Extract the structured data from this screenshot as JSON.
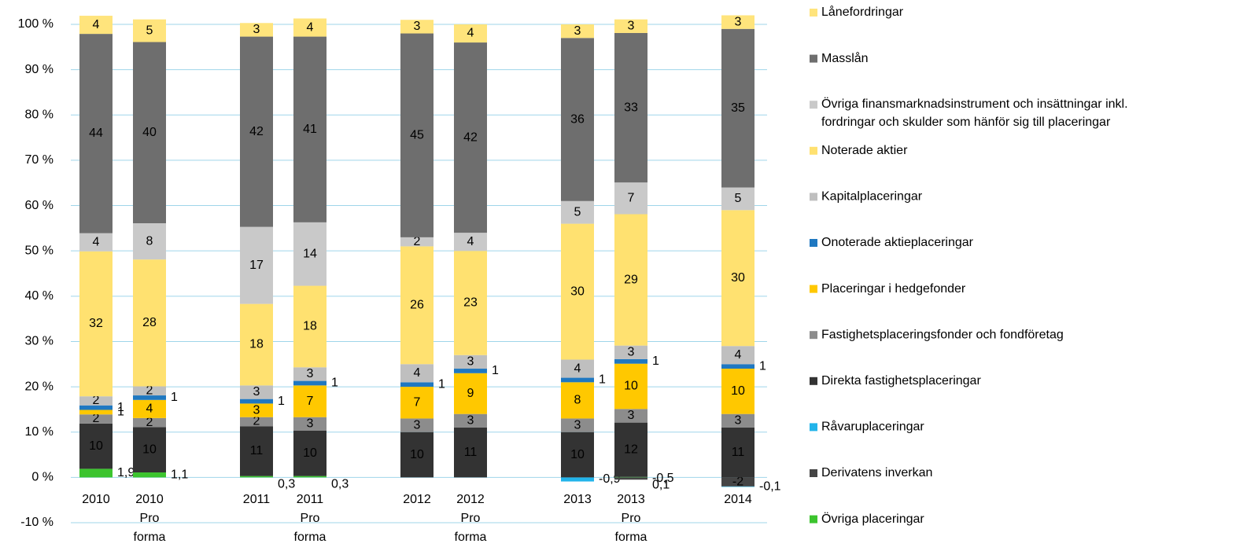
{
  "chart_data": {
    "type": "stacked_bar",
    "categories": [
      "2010",
      "2010\nPro\nforma",
      "2011",
      "2011\nPro\nforma",
      "2012",
      "2012\nPro\nforma",
      "2013",
      "2013\nPro\nforma",
      "2014"
    ],
    "ylim": [
      -10,
      100
    ],
    "yticks": [
      {
        "value": -10,
        "label": "-10 %"
      },
      {
        "value": 0,
        "label": "0 %"
      },
      {
        "value": 10,
        "label": "10 %"
      },
      {
        "value": 20,
        "label": "20 %"
      },
      {
        "value": 30,
        "label": "30 %"
      },
      {
        "value": 40,
        "label": "40 %"
      },
      {
        "value": 50,
        "label": "50 %"
      },
      {
        "value": 60,
        "label": "60 %"
      },
      {
        "value": 70,
        "label": "70 %"
      },
      {
        "value": 80,
        "label": "80 %"
      },
      {
        "value": 90,
        "label": "90 %"
      },
      {
        "value": 100,
        "label": "100 %"
      }
    ],
    "grid": true,
    "legend": "right",
    "series": [
      {
        "name": "Övriga placeringar",
        "color": "#3cc42e",
        "values": [
          1.9,
          1.1,
          0.3,
          0.3,
          null,
          null,
          null,
          0.1,
          null
        ],
        "value_labels": [
          "1,9",
          "1,1",
          "0,3",
          "0,3",
          null,
          null,
          null,
          "0,1",
          null
        ]
      },
      {
        "name": "Derivatens inverkan",
        "color": "#454545",
        "values": [
          null,
          null,
          null,
          null,
          null,
          null,
          null,
          -0.5,
          -2
        ],
        "value_labels": [
          null,
          null,
          null,
          null,
          null,
          null,
          null,
          "-0,5",
          "-2"
        ]
      },
      {
        "name": "Råvaruplaceringar",
        "color": "#22b4ea",
        "values": [
          null,
          null,
          null,
          null,
          null,
          null,
          -0.9,
          null,
          -0.1
        ],
        "value_labels": [
          null,
          null,
          null,
          null,
          null,
          null,
          "-0,9",
          null,
          "-0,1"
        ]
      },
      {
        "name": "Direkta fastighetsplaceringar",
        "color": "#333333",
        "values": [
          10,
          10,
          11,
          10,
          10,
          11,
          10,
          12,
          11
        ]
      },
      {
        "name": "Fastighetsplaceringsfonder och fondföretag",
        "color": "#8c8c8c",
        "values": [
          2,
          2,
          2,
          3,
          3,
          3,
          3,
          3,
          3
        ]
      },
      {
        "name": "Placeringar i hedgefonder",
        "color": "#ffc800",
        "values": [
          1,
          4,
          3,
          7,
          7,
          9,
          8,
          10,
          10
        ]
      },
      {
        "name": "Onoterade aktieplaceringar",
        "color": "#1f78c1",
        "values": [
          1,
          1,
          1,
          1,
          1,
          1,
          1,
          1,
          1
        ]
      },
      {
        "name": "Kapitalplaceringar",
        "color": "#bfbfbf",
        "values": [
          2,
          2,
          3,
          3,
          4,
          3,
          4,
          3,
          4
        ]
      },
      {
        "name": "Noterade aktier",
        "color": "#ffe170",
        "values": [
          32,
          28,
          18,
          18,
          26,
          23,
          30,
          29,
          30
        ]
      },
      {
        "name": "Övriga finansmarknadsinstrument och insättningar inkl.\nfordringar och skulder som hänför sig till placeringar",
        "color": "#c9c9c9",
        "values": [
          4,
          8,
          17,
          14,
          2,
          4,
          5,
          7,
          5
        ]
      },
      {
        "name": "Masslån",
        "color": "#6e6e6e",
        "values": [
          44,
          40,
          42,
          41,
          45,
          42,
          36,
          33,
          35
        ]
      },
      {
        "name": "Lånefordringar",
        "color": "#ffe47c",
        "values": [
          4,
          5,
          3,
          4,
          3,
          4,
          3,
          3,
          3
        ]
      }
    ]
  }
}
